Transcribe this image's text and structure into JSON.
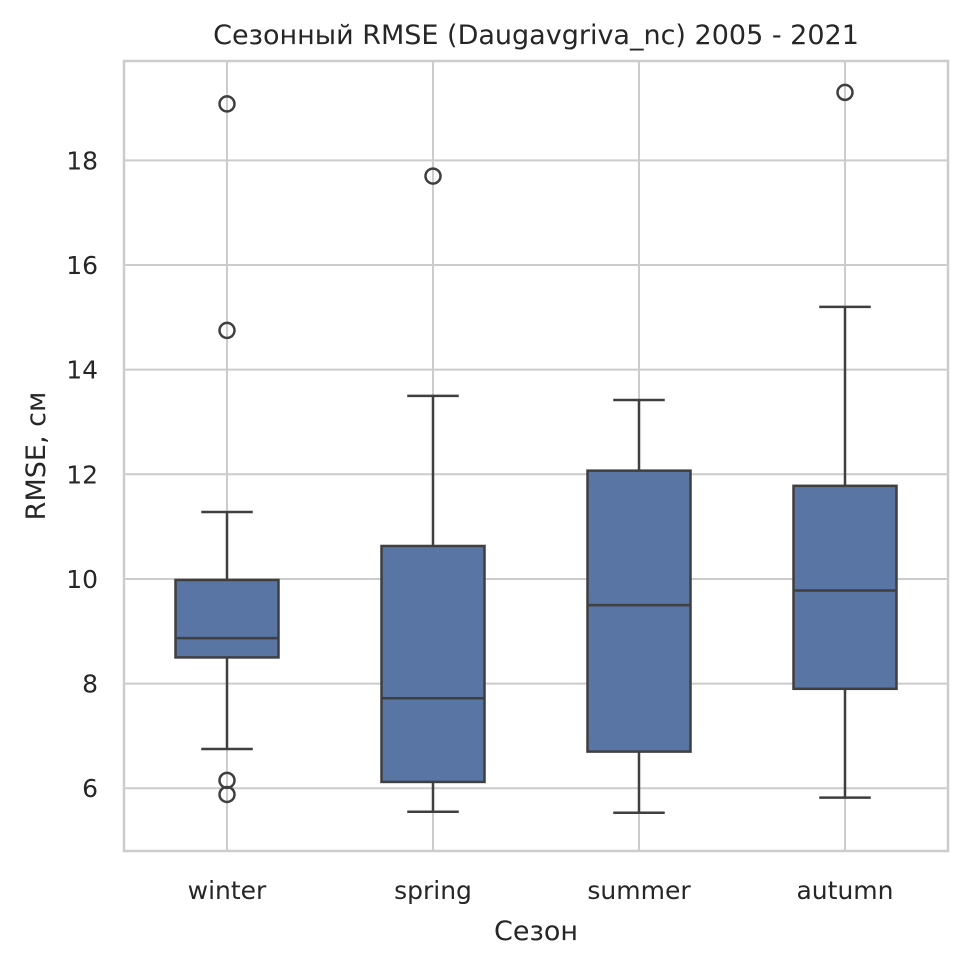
{
  "chart_data": {
    "type": "box",
    "title": "Сезонный RMSE (Daugavgriva_nc) 2005 - 2021",
    "xlabel": "Сезон",
    "ylabel": "RMSE, см",
    "ylim": [
      4.8,
      19.9
    ],
    "yticks": [
      "6",
      "8",
      "10",
      "12",
      "14",
      "16",
      "18"
    ],
    "grid": true,
    "colors": {
      "box": "#5975a4",
      "line": "#3f3f3f",
      "grid": "#cccccc",
      "frame": "#cccccc"
    },
    "categories": [
      "winter",
      "spring",
      "summer",
      "autumn"
    ],
    "boxes": [
      {
        "category": "winter",
        "whisker_low": 6.75,
        "q1": 8.5,
        "median": 8.87,
        "q3": 9.98,
        "whisker_high": 11.28,
        "outliers": [
          19.08,
          14.75,
          6.15,
          5.88
        ]
      },
      {
        "category": "spring",
        "whisker_low": 5.55,
        "q1": 6.12,
        "median": 7.72,
        "q3": 10.63,
        "whisker_high": 13.5,
        "outliers": [
          17.7
        ]
      },
      {
        "category": "summer",
        "whisker_low": 5.53,
        "q1": 6.7,
        "median": 9.5,
        "q3": 12.07,
        "whisker_high": 13.42,
        "outliers": []
      },
      {
        "category": "autumn",
        "whisker_low": 5.82,
        "q1": 7.9,
        "median": 9.78,
        "q3": 11.78,
        "whisker_high": 15.2,
        "outliers": [
          19.3
        ]
      }
    ]
  }
}
